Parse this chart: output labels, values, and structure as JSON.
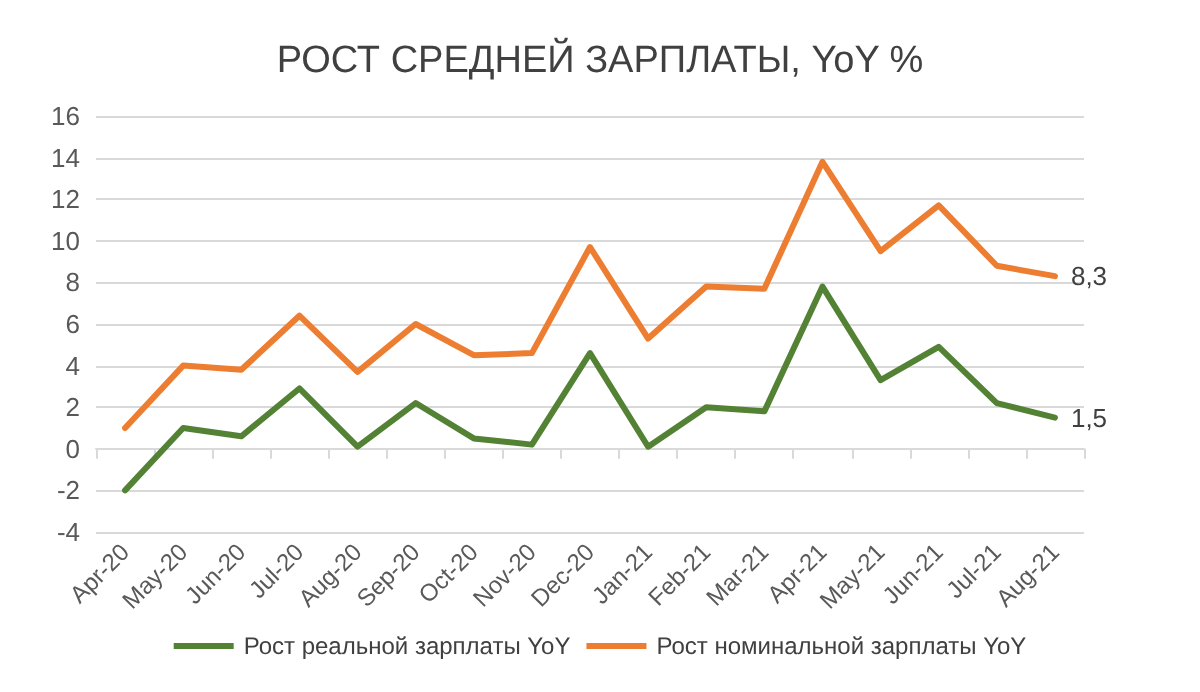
{
  "chart_data": {
    "type": "line",
    "title": "РОСТ СРЕДНЕЙ ЗАРПЛАТЫ, YoY %",
    "categories": [
      "Apr-20",
      "May-20",
      "Jun-20",
      "Jul-20",
      "Aug-20",
      "Sep-20",
      "Oct-20",
      "Nov-20",
      "Dec-20",
      "Jan-21",
      "Feb-21",
      "Mar-21",
      "Apr-21",
      "May-21",
      "Jun-21",
      "Jul-21",
      "Aug-21"
    ],
    "series": [
      {
        "name": "Рост реальной зарплаты YoY",
        "color": "#548235",
        "values": [
          -2,
          1,
          0.6,
          2.9,
          0.1,
          2.2,
          0.5,
          0.2,
          4.6,
          0.1,
          2,
          1.8,
          7.8,
          3.3,
          4.9,
          2.2,
          1.5
        ],
        "value_labels": [
          null,
          null,
          null,
          null,
          null,
          null,
          null,
          null,
          null,
          null,
          null,
          null,
          null,
          null,
          null,
          null,
          "1,5"
        ]
      },
      {
        "name": "Рост номинальной зарплаты YoY",
        "color": "#ed7d31",
        "values": [
          1,
          4,
          3.8,
          6.4,
          3.7,
          6,
          4.5,
          4.6,
          9.7,
          5.3,
          7.8,
          7.7,
          13.8,
          9.5,
          11.7,
          8.8,
          8.3
        ],
        "value_labels": [
          null,
          null,
          null,
          null,
          null,
          null,
          null,
          null,
          null,
          null,
          null,
          null,
          null,
          null,
          null,
          null,
          "8,3"
        ]
      }
    ],
    "ylim": [
      -4,
      16
    ],
    "yticks": [
      -4,
      -2,
      0,
      2,
      4,
      6,
      8,
      10,
      12,
      14,
      16
    ],
    "grid": "y",
    "legend": "bottom",
    "marker": "none",
    "line_style": "solid"
  }
}
